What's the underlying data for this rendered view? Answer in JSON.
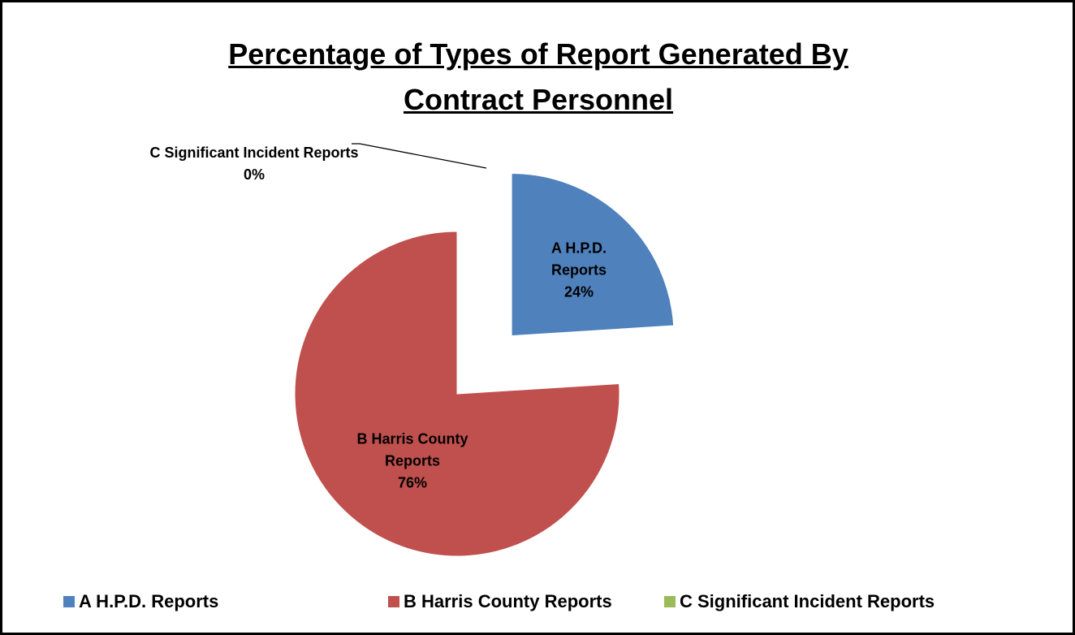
{
  "chart_data": {
    "type": "pie",
    "title": "Percentage of Types of Report Generated By Contract Personnel",
    "categories": [
      "A H.P.D. Reports",
      "B Harris County Reports",
      "C Significant Incident Reports"
    ],
    "values": [
      24,
      76,
      0
    ],
    "value_labels": [
      "24%",
      "76%",
      "0%"
    ],
    "colors": [
      "#4f81bd",
      "#c0504d",
      "#9bbb59"
    ],
    "legend": "bottom"
  }
}
